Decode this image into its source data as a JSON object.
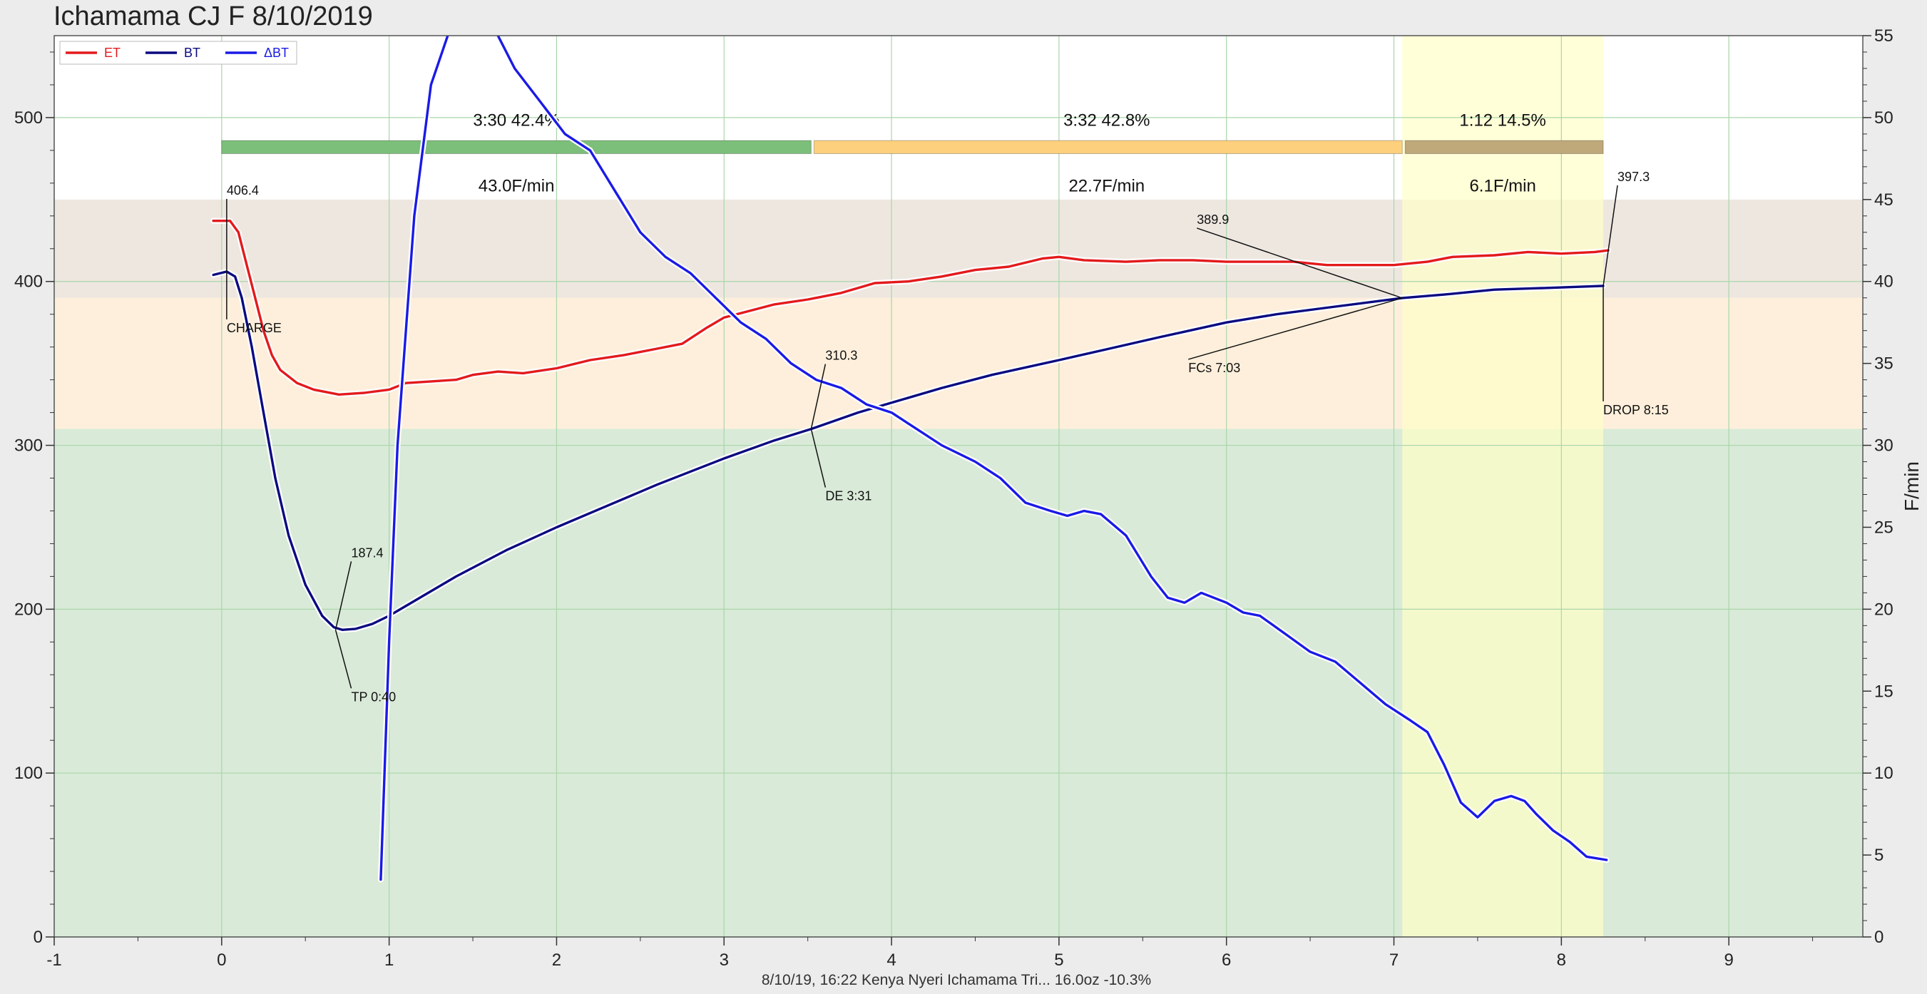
{
  "title": "Ichamama CJ F 8/10/2019",
  "footer": "8/10/19, 16:22   Kenya Nyeri Ichamama Tri...   16.0oz   -10.3%",
  "colors": {
    "et": "#e31a1c",
    "bt": "#0a0a80",
    "dbt": "#1a1ae6",
    "zone_high": "#eee7e0",
    "zone_mid": "#fdefdb",
    "zone_low": "#d9ead8",
    "dev_band": "#ffffc8",
    "grid": "#a9d6a9",
    "phase_dry": "#7cbf7a",
    "phase_maillard": "#fdd07e",
    "phase_dev": "#bfa87a"
  },
  "chart_data": {
    "type": "line",
    "title": "Ichamama CJ F 8/10/2019",
    "xlabel": "",
    "ylabel": "",
    "y2label": "F/min",
    "xlim": [
      -1,
      9.8
    ],
    "ylim": [
      0,
      550
    ],
    "y2lim": [
      0,
      55
    ],
    "grid": true,
    "legend_position": "top-left",
    "x_ticks": [
      -1,
      0,
      1,
      2,
      3,
      4,
      5,
      6,
      7,
      8,
      9
    ],
    "y_ticks": [
      0,
      100,
      200,
      300,
      400,
      500
    ],
    "y2_ticks": [
      0,
      5,
      10,
      15,
      20,
      25,
      30,
      35,
      40,
      45,
      50,
      55
    ],
    "zones": [
      {
        "from": 390,
        "to": 450,
        "color_key": "zone_high"
      },
      {
        "from": 310,
        "to": 390,
        "color_key": "zone_mid"
      },
      {
        "from": 0,
        "to": 310,
        "color_key": "zone_low"
      }
    ],
    "dev_band": [
      7.05,
      8.25
    ],
    "series": [
      {
        "name": "ET",
        "axis": "left",
        "color_key": "et",
        "points": [
          [
            -0.05,
            437
          ],
          [
            0.05,
            437
          ],
          [
            0.1,
            430
          ],
          [
            0.15,
            410
          ],
          [
            0.2,
            390
          ],
          [
            0.25,
            370
          ],
          [
            0.3,
            355
          ],
          [
            0.35,
            346
          ],
          [
            0.45,
            338
          ],
          [
            0.55,
            334
          ],
          [
            0.7,
            331
          ],
          [
            0.85,
            332
          ],
          [
            1.0,
            334
          ],
          [
            1.1,
            338
          ],
          [
            1.25,
            339
          ],
          [
            1.4,
            340
          ],
          [
            1.5,
            343
          ],
          [
            1.65,
            345
          ],
          [
            1.8,
            344
          ],
          [
            2.0,
            347
          ],
          [
            2.2,
            352
          ],
          [
            2.4,
            355
          ],
          [
            2.6,
            359
          ],
          [
            2.75,
            362
          ],
          [
            2.9,
            372
          ],
          [
            3.0,
            378
          ],
          [
            3.15,
            382
          ],
          [
            3.3,
            386
          ],
          [
            3.5,
            389
          ],
          [
            3.7,
            393
          ],
          [
            3.9,
            399
          ],
          [
            4.1,
            400
          ],
          [
            4.3,
            403
          ],
          [
            4.5,
            407
          ],
          [
            4.7,
            409
          ],
          [
            4.9,
            414
          ],
          [
            5.0,
            415
          ],
          [
            5.15,
            413
          ],
          [
            5.4,
            412
          ],
          [
            5.6,
            413
          ],
          [
            5.8,
            413
          ],
          [
            6.0,
            412
          ],
          [
            6.2,
            412
          ],
          [
            6.4,
            412
          ],
          [
            6.6,
            410
          ],
          [
            6.8,
            410
          ],
          [
            7.0,
            410
          ],
          [
            7.2,
            412
          ],
          [
            7.35,
            415
          ],
          [
            7.6,
            416
          ],
          [
            7.8,
            418
          ],
          [
            8.0,
            417
          ],
          [
            8.2,
            418
          ],
          [
            8.28,
            419
          ]
        ]
      },
      {
        "name": "BT",
        "axis": "left",
        "color_key": "bt",
        "points": [
          [
            -0.05,
            404
          ],
          [
            0.03,
            406
          ],
          [
            0.08,
            403
          ],
          [
            0.12,
            390
          ],
          [
            0.18,
            360
          ],
          [
            0.25,
            320
          ],
          [
            0.32,
            280
          ],
          [
            0.4,
            245
          ],
          [
            0.5,
            215
          ],
          [
            0.6,
            196
          ],
          [
            0.67,
            189
          ],
          [
            0.72,
            187.4
          ],
          [
            0.8,
            188
          ],
          [
            0.9,
            191
          ],
          [
            1.0,
            196
          ],
          [
            1.2,
            208
          ],
          [
            1.4,
            220
          ],
          [
            1.7,
            236
          ],
          [
            2.0,
            250
          ],
          [
            2.3,
            263
          ],
          [
            2.6,
            276
          ],
          [
            3.0,
            292
          ],
          [
            3.3,
            303
          ],
          [
            3.52,
            310
          ],
          [
            3.8,
            320
          ],
          [
            4.0,
            326
          ],
          [
            4.3,
            335
          ],
          [
            4.6,
            343
          ],
          [
            5.0,
            352
          ],
          [
            5.3,
            359
          ],
          [
            5.6,
            366
          ],
          [
            6.0,
            375
          ],
          [
            6.3,
            380
          ],
          [
            6.6,
            384
          ],
          [
            7.05,
            389.9
          ],
          [
            7.3,
            392
          ],
          [
            7.6,
            395
          ],
          [
            7.9,
            396
          ],
          [
            8.25,
            397.3
          ]
        ]
      },
      {
        "name": "ΔBT",
        "axis": "right",
        "color_key": "dbt",
        "points": [
          [
            0.95,
            3.5
          ],
          [
            1.0,
            18
          ],
          [
            1.05,
            30
          ],
          [
            1.15,
            44
          ],
          [
            1.25,
            52
          ],
          [
            1.35,
            55
          ],
          [
            1.45,
            56
          ],
          [
            1.6,
            56
          ],
          [
            1.75,
            53
          ],
          [
            1.9,
            51
          ],
          [
            2.05,
            49
          ],
          [
            2.2,
            48
          ],
          [
            2.35,
            45.5
          ],
          [
            2.5,
            43
          ],
          [
            2.65,
            41.5
          ],
          [
            2.8,
            40.5
          ],
          [
            2.95,
            39
          ],
          [
            3.1,
            37.5
          ],
          [
            3.25,
            36.5
          ],
          [
            3.4,
            35
          ],
          [
            3.55,
            34
          ],
          [
            3.7,
            33.5
          ],
          [
            3.85,
            32.5
          ],
          [
            4.0,
            32
          ],
          [
            4.15,
            31
          ],
          [
            4.3,
            30
          ],
          [
            4.5,
            29
          ],
          [
            4.65,
            28
          ],
          [
            4.8,
            26.5
          ],
          [
            4.95,
            26
          ],
          [
            5.05,
            25.7
          ],
          [
            5.15,
            26
          ],
          [
            5.25,
            25.8
          ],
          [
            5.4,
            24.5
          ],
          [
            5.55,
            22
          ],
          [
            5.65,
            20.7
          ],
          [
            5.75,
            20.4
          ],
          [
            5.85,
            21
          ],
          [
            6.0,
            20.4
          ],
          [
            6.1,
            19.8
          ],
          [
            6.2,
            19.6
          ],
          [
            6.35,
            18.5
          ],
          [
            6.5,
            17.4
          ],
          [
            6.65,
            16.8
          ],
          [
            6.8,
            15.5
          ],
          [
            6.95,
            14.2
          ],
          [
            7.1,
            13.2
          ],
          [
            7.2,
            12.5
          ],
          [
            7.3,
            10.5
          ],
          [
            7.4,
            8.2
          ],
          [
            7.5,
            7.3
          ],
          [
            7.6,
            8.3
          ],
          [
            7.7,
            8.6
          ],
          [
            7.78,
            8.3
          ],
          [
            7.85,
            7.5
          ],
          [
            7.95,
            6.5
          ],
          [
            8.05,
            5.8
          ],
          [
            8.15,
            4.9
          ],
          [
            8.27,
            4.7
          ]
        ]
      }
    ],
    "phases": [
      {
        "x0": 0,
        "x1": 3.52,
        "label": "3:30  42.4%",
        "rate": "43.0F/min",
        "color_key": "phase_dry"
      },
      {
        "x0": 3.52,
        "x1": 7.05,
        "label": "3:32  42.8%",
        "rate": "22.7F/min",
        "color_key": "phase_maillard"
      },
      {
        "x0": 7.05,
        "x1": 8.25,
        "label": "1:12  14.5%",
        "rate": "6.1F/min",
        "color_key": "phase_dev"
      }
    ],
    "annotations": [
      {
        "x": 0.03,
        "y": 406,
        "value": "406.4",
        "label": "CHARGE"
      },
      {
        "x": 0.68,
        "y": 187.4,
        "value": "187.4",
        "label": "TP 0:40"
      },
      {
        "x": 3.52,
        "y": 310,
        "value": "310.3",
        "label": "DE 3:31"
      },
      {
        "x": 7.05,
        "y": 389.9,
        "value": "389.9",
        "label": "FCs 7:03"
      },
      {
        "x": 8.25,
        "y": 397.3,
        "value": "397.3",
        "label": "DROP 8:15"
      }
    ]
  }
}
